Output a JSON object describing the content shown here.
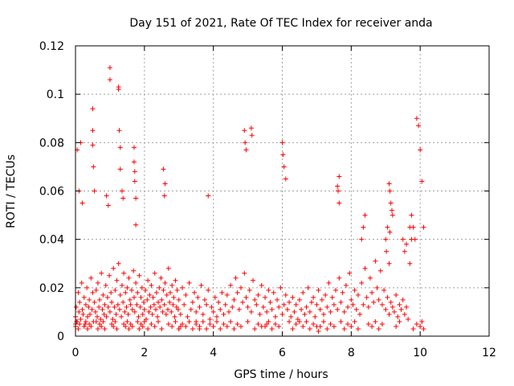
{
  "chart_data": {
    "type": "scatter",
    "title": "Day 151 of 2021, Rate Of TEC Index for receiver anda",
    "xlabel": "GPS time / hours",
    "ylabel": "ROTI / TECUs",
    "xlim": [
      0,
      12
    ],
    "ylim": [
      0,
      0.12
    ],
    "x_ticks": [
      0,
      2,
      4,
      6,
      8,
      10,
      12
    ],
    "x_tick_labels": [
      "0",
      "2",
      "4",
      "6",
      "8",
      "10",
      "12"
    ],
    "y_ticks": [
      0,
      0.02,
      0.04,
      0.06,
      0.08,
      0.1,
      0.12
    ],
    "y_tick_labels": [
      "0",
      "0.02",
      "0.04",
      "0.06",
      "0.08",
      "0.1",
      "0.12"
    ],
    "grid": true,
    "marker": "plus",
    "color": "#ff0000",
    "series": [
      {
        "x": [
          0.0,
          0.02,
          0.05,
          0.08,
          0.1,
          0.12,
          0.15,
          0.18,
          0.2,
          0.22,
          0.25,
          0.28,
          0.3,
          0.33,
          0.35,
          0.38,
          0.4,
          0.42,
          0.45,
          0.48,
          0.5,
          0.52,
          0.55,
          0.58,
          0.6,
          0.63,
          0.65,
          0.68,
          0.7,
          0.73,
          0.75,
          0.78,
          0.8,
          0.83,
          0.85,
          0.88,
          0.9,
          0.93,
          0.95,
          0.98,
          1.0,
          1.03,
          1.05,
          1.08,
          1.1,
          1.13,
          1.15,
          1.18,
          1.2,
          1.23,
          1.25,
          1.28,
          1.3,
          1.33,
          1.35,
          1.38,
          1.4,
          1.43,
          1.45,
          1.48,
          1.5,
          1.53,
          1.55,
          1.58,
          1.6,
          1.63,
          1.65,
          1.68,
          1.7,
          1.72,
          1.75,
          1.78,
          1.8,
          1.83,
          1.85,
          1.88,
          1.9,
          1.93,
          1.95,
          1.98,
          2.0,
          2.03,
          2.05,
          2.08,
          2.1,
          2.13,
          2.15,
          2.18,
          2.2,
          2.23,
          2.25,
          2.28,
          2.3,
          2.33,
          2.35,
          2.38,
          2.4,
          2.43,
          2.45,
          2.48,
          2.5,
          2.53,
          2.55,
          2.58,
          2.6,
          2.63,
          2.65,
          2.68,
          2.7,
          2.73,
          2.75,
          2.78,
          2.8,
          2.83,
          2.85,
          2.88,
          2.9,
          2.93,
          2.95,
          2.98,
          3.0,
          3.05,
          3.1,
          3.15,
          3.2,
          3.25,
          3.3,
          3.35,
          3.4,
          3.45,
          3.5,
          3.55,
          3.6,
          3.65,
          3.7,
          3.75,
          3.8,
          3.85,
          3.9,
          3.95,
          4.0,
          4.05,
          4.1,
          4.15,
          4.2,
          4.25,
          4.3,
          4.35,
          4.4,
          4.45,
          4.5,
          4.55,
          4.6,
          4.65,
          4.7,
          4.75,
          4.8,
          4.85,
          4.9,
          4.95,
          5.0,
          5.05,
          5.1,
          5.15,
          5.2,
          5.25,
          5.3,
          5.35,
          5.4,
          5.45,
          5.5,
          5.55,
          5.6,
          5.65,
          5.7,
          5.75,
          5.8,
          5.85,
          5.9,
          5.95,
          6.0,
          6.05,
          6.1,
          6.15,
          6.2,
          6.25,
          6.3,
          6.35,
          6.4,
          6.45,
          6.5,
          6.55,
          6.6,
          6.65,
          6.7,
          6.75,
          6.8,
          6.85,
          6.9,
          6.95,
          7.0,
          7.05,
          7.1,
          7.15,
          7.2,
          7.25,
          7.3,
          7.35,
          7.4,
          7.45,
          7.5,
          7.55,
          7.6,
          7.65,
          7.7,
          7.75,
          7.8,
          7.85,
          7.9,
          7.95,
          8.0,
          8.05,
          8.1,
          8.15,
          8.2,
          8.25,
          8.3,
          8.35,
          8.4,
          8.45,
          8.5,
          8.55,
          8.6,
          8.65,
          8.7,
          8.75,
          8.8,
          8.85,
          8.9,
          8.95,
          9.0,
          9.05,
          9.1,
          9.15,
          9.2,
          9.25,
          9.3,
          9.35,
          9.4,
          9.45,
          9.5,
          9.55,
          9.6,
          9.65,
          9.7,
          9.75,
          9.8,
          9.85,
          9.9,
          9.95,
          10.0,
          10.05,
          10.1,
          0.05,
          0.1,
          0.15,
          0.2,
          0.5,
          0.5,
          0.5,
          0.52,
          0.55,
          0.9,
          0.95,
          1.0,
          1.0,
          1.25,
          1.25,
          1.27,
          1.3,
          1.3,
          1.35,
          1.38,
          1.7,
          1.7,
          1.72,
          1.72,
          1.75,
          1.75,
          2.55,
          2.6,
          2.58,
          3.85,
          4.9,
          4.92,
          4.95,
          5.1,
          5.12,
          6.0,
          6.02,
          6.05,
          6.1,
          7.6,
          7.62,
          7.65,
          7.65,
          9.1,
          9.12,
          9.15,
          9.18,
          9.2,
          9.05,
          9.0,
          9.02,
          9.1,
          9.12,
          8.3,
          8.35,
          8.4,
          9.5,
          9.55,
          9.6,
          9.7,
          9.75,
          7.0,
          7.05,
          6.5,
          5.5,
          5.55,
          3.0,
          3.05,
          3.5,
          3.6,
          0.0,
          0.0,
          0.03,
          0.08,
          0.12,
          0.25,
          0.3,
          0.35,
          0.4,
          0.45,
          0.6,
          0.65,
          0.7,
          0.75,
          0.8,
          0.85,
          1.05,
          1.1,
          1.15,
          1.2,
          1.4,
          1.45,
          1.5,
          1.55,
          1.6,
          1.65,
          1.8,
          1.85,
          1.9,
          1.95,
          2.0,
          2.1,
          2.2,
          2.3,
          2.4,
          2.5,
          2.7,
          2.8,
          2.9,
          3.0,
          3.1,
          3.2,
          3.3,
          3.4,
          3.5,
          3.6,
          3.7,
          3.8,
          3.9,
          4.0,
          4.1,
          4.2,
          4.3,
          4.4,
          4.5,
          4.6,
          4.7,
          4.8,
          5.0,
          5.2,
          5.3,
          5.4,
          5.6,
          5.7,
          5.8,
          5.9,
          6.2,
          6.3,
          6.4,
          6.6,
          6.7,
          6.8,
          6.9,
          7.1,
          7.2,
          7.3,
          7.4,
          7.5,
          7.7,
          7.8,
          7.9,
          8.0,
          8.1,
          8.2,
          8.5,
          8.6,
          8.7,
          8.8,
          8.9,
          9.3,
          9.4,
          9.8,
          9.9,
          10.0,
          10.05,
          10.1
        ],
        "y": [
          0.008,
          0.012,
          0.006,
          0.018,
          0.01,
          0.014,
          0.007,
          0.022,
          0.011,
          0.009,
          0.016,
          0.005,
          0.013,
          0.02,
          0.008,
          0.012,
          0.015,
          0.009,
          0.024,
          0.011,
          0.018,
          0.006,
          0.014,
          0.01,
          0.019,
          0.008,
          0.022,
          0.012,
          0.015,
          0.007,
          0.026,
          0.011,
          0.017,
          0.009,
          0.013,
          0.021,
          0.008,
          0.016,
          0.012,
          0.025,
          0.01,
          0.018,
          0.014,
          0.007,
          0.028,
          0.012,
          0.019,
          0.009,
          0.023,
          0.013,
          0.03,
          0.011,
          0.017,
          0.008,
          0.021,
          0.014,
          0.026,
          0.01,
          0.018,
          0.012,
          0.02,
          0.009,
          0.024,
          0.015,
          0.013,
          0.019,
          0.011,
          0.027,
          0.016,
          0.01,
          0.022,
          0.013,
          0.018,
          0.008,
          0.025,
          0.012,
          0.016,
          0.02,
          0.009,
          0.014,
          0.011,
          0.019,
          0.007,
          0.015,
          0.023,
          0.01,
          0.017,
          0.012,
          0.021,
          0.009,
          0.016,
          0.013,
          0.026,
          0.011,
          0.018,
          0.008,
          0.014,
          0.02,
          0.012,
          0.024,
          0.015,
          0.01,
          0.019,
          0.013,
          0.022,
          0.009,
          0.017,
          0.011,
          0.028,
          0.014,
          0.018,
          0.01,
          0.021,
          0.013,
          0.016,
          0.008,
          0.023,
          0.012,
          0.019,
          0.011,
          0.015,
          0.009,
          0.02,
          0.013,
          0.017,
          0.008,
          0.022,
          0.011,
          0.014,
          0.018,
          0.01,
          0.016,
          0.012,
          0.021,
          0.009,
          0.015,
          0.013,
          0.019,
          0.007,
          0.012,
          0.01,
          0.016,
          0.008,
          0.014,
          0.011,
          0.018,
          0.009,
          0.013,
          0.017,
          0.01,
          0.021,
          0.012,
          0.015,
          0.024,
          0.018,
          0.011,
          0.02,
          0.014,
          0.026,
          0.016,
          0.012,
          0.019,
          0.01,
          0.023,
          0.015,
          0.013,
          0.017,
          0.009,
          0.021,
          0.012,
          0.016,
          0.01,
          0.019,
          0.014,
          0.011,
          0.018,
          0.008,
          0.015,
          0.012,
          0.02,
          0.009,
          0.013,
          0.017,
          0.011,
          0.014,
          0.008,
          0.016,
          0.01,
          0.013,
          0.007,
          0.015,
          0.011,
          0.018,
          0.009,
          0.012,
          0.02,
          0.01,
          0.014,
          0.016,
          0.008,
          0.013,
          0.019,
          0.011,
          0.015,
          0.009,
          0.017,
          0.012,
          0.022,
          0.01,
          0.016,
          0.013,
          0.019,
          0.011,
          0.024,
          0.014,
          0.018,
          0.01,
          0.021,
          0.012,
          0.026,
          0.015,
          0.013,
          0.019,
          0.011,
          0.017,
          0.009,
          0.022,
          0.013,
          0.028,
          0.016,
          0.012,
          0.024,
          0.018,
          0.014,
          0.031,
          0.02,
          0.015,
          0.027,
          0.013,
          0.019,
          0.011,
          0.016,
          0.009,
          0.014,
          0.012,
          0.01,
          0.017,
          0.008,
          0.013,
          0.011,
          0.015,
          0.009,
          0.012,
          0.007,
          0.03,
          0.05,
          0.045,
          0.04,
          0.09,
          0.087,
          0.077,
          0.064,
          0.045,
          0.077,
          0.06,
          0.08,
          0.055,
          0.094,
          0.085,
          0.079,
          0.07,
          0.06,
          0.058,
          0.054,
          0.111,
          0.106,
          0.103,
          0.102,
          0.085,
          0.078,
          0.069,
          0.06,
          0.057,
          0.078,
          0.072,
          0.068,
          0.064,
          0.057,
          0.046,
          0.069,
          0.063,
          0.058,
          0.058,
          0.085,
          0.08,
          0.077,
          0.086,
          0.083,
          0.08,
          0.075,
          0.07,
          0.065,
          0.062,
          0.06,
          0.055,
          0.066,
          0.063,
          0.06,
          0.055,
          0.052,
          0.05,
          0.045,
          0.04,
          0.035,
          0.03,
          0.043,
          0.04,
          0.045,
          0.05,
          0.04,
          0.035,
          0.038,
          0.045,
          0.04,
          0.004,
          0.002,
          0.006,
          0.004,
          0.005,
          0.003,
          0.004,
          0.006,
          0.003,
          0.005,
          0.004,
          0.006,
          0.003,
          0.005,
          0.004,
          0.006,
          0.003,
          0.005,
          0.004,
          0.006,
          0.003,
          0.005,
          0.004,
          0.006,
          0.003,
          0.005,
          0.004,
          0.006,
          0.003,
          0.005,
          0.004,
          0.006,
          0.003,
          0.005,
          0.004,
          0.006,
          0.003,
          0.005,
          0.004,
          0.006,
          0.003,
          0.005,
          0.004,
          0.006,
          0.003,
          0.005,
          0.004,
          0.006,
          0.003,
          0.005,
          0.004,
          0.006,
          0.003,
          0.005,
          0.004,
          0.006,
          0.003,
          0.005,
          0.004,
          0.006,
          0.003,
          0.005,
          0.004,
          0.006,
          0.003,
          0.005,
          0.004,
          0.006,
          0.003,
          0.005,
          0.004,
          0.006,
          0.003,
          0.005,
          0.004,
          0.006,
          0.003,
          0.005,
          0.004,
          0.006,
          0.003,
          0.005,
          0.004,
          0.006,
          0.003,
          0.005,
          0.004,
          0.006,
          0.003,
          0.005,
          0.004,
          0.006,
          0.003,
          0.005,
          0.004,
          0.006,
          0.003,
          0.005,
          0.004,
          0.006,
          0.003,
          0.005,
          0.004,
          0.006,
          0.003
        ]
      }
    ]
  }
}
